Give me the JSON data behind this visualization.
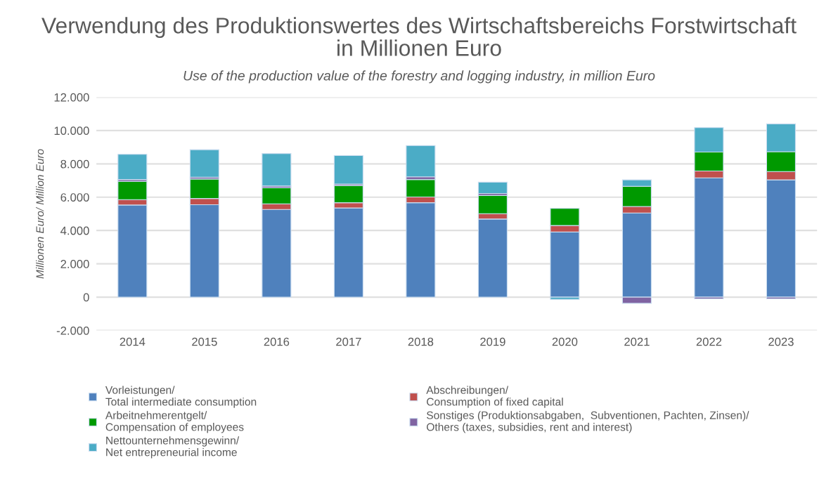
{
  "chart_data": {
    "type": "bar",
    "title": "Verwendung des Produktionswertes des Wirtschaftsbereichs Forstwirtschaft\nin Millionen Euro",
    "subtitle": "Use of the production value of the forestry and logging industry, in million Euro",
    "ylabel": "Millionen Euro/ Million Euro",
    "categories": [
      "2014",
      "2015",
      "2016",
      "2017",
      "2018",
      "2019",
      "2020",
      "2021",
      "2022",
      "2023"
    ],
    "stacked": true,
    "series": [
      {
        "name": "Vorleistungen/\nTotal intermediate consumption",
        "color": "#4f81bd",
        "values": [
          5530,
          5550,
          5260,
          5350,
          5670,
          4690,
          3910,
          5050,
          7160,
          7040
        ]
      },
      {
        "name": "Abschreibungen/\nConsumption of fixed capital",
        "color": "#c0504d",
        "values": [
          320,
          370,
          340,
          320,
          340,
          320,
          390,
          390,
          410,
          500
        ]
      },
      {
        "name": "Arbeitnehmerentgelt/\nCompensation of employees",
        "color": "#009900",
        "values": [
          1100,
          1170,
          960,
          1030,
          1050,
          1090,
          1030,
          1210,
          1140,
          1190
        ]
      },
      {
        "name": "Sonstiges (Produktionsabgaben,  Subventionen, Pachten, Zinsen)/\nOthers (taxes, subsidies, rent and interest)",
        "color": "#8064a2",
        "values": [
          110,
          110,
          110,
          90,
          160,
          120,
          null,
          -370,
          -100,
          -100
        ]
      },
      {
        "name": "Nettounternehmensgewinn/\nNet entrepreneurial income",
        "color": "#4bacc6",
        "values": [
          1510,
          1650,
          1950,
          1710,
          1880,
          680,
          -130,
          390,
          1460,
          1670
        ]
      }
    ],
    "ylim": [
      -2000,
      12000
    ],
    "yticks": [
      {
        "value": -2000,
        "label": "-2.000"
      },
      0,
      {
        "value": 2000,
        "label": "2.000"
      },
      {
        "value": 4000,
        "label": "4.000"
      },
      {
        "value": 6000,
        "label": "6.000"
      },
      {
        "value": 8000,
        "label": "8.000"
      },
      {
        "value": 10000,
        "label": "10.000"
      },
      {
        "value": 12000,
        "label": "12.000"
      }
    ],
    "grid": "y",
    "legend": "bottom"
  }
}
